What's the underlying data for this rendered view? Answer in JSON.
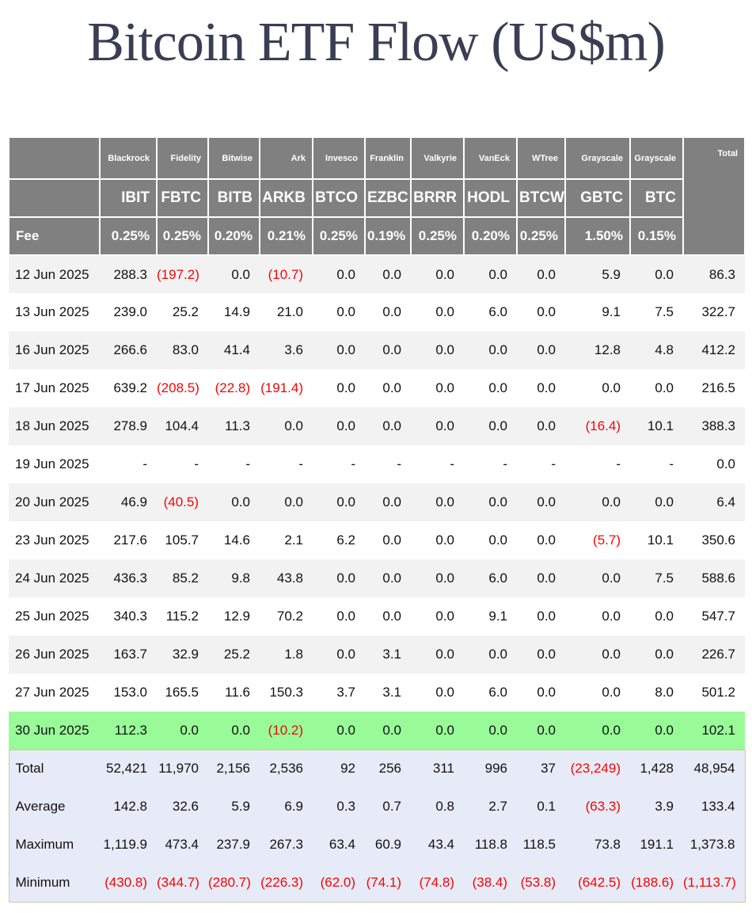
{
  "colors": {
    "title_navy": "#3a3e54",
    "header_gray": "#808080",
    "header_text": "#ffffff",
    "row_alt_gray": "#f2f2f3",
    "highlight_green": "#98fb98",
    "summary_lavender": "#e7ebf7",
    "negative_red": "#f40505"
  },
  "chart_data": {
    "type": "table",
    "title": "Bitcoin ETF Flow (US$m)",
    "fee_label": "Fee",
    "total_col_label": "Total",
    "providers": [
      "Blackrock",
      "Fidelity",
      "Bitwise",
      "Ark",
      "Invesco",
      "Franklin",
      "Valkyrie",
      "VanEck",
      "WTree",
      "Grayscale",
      "Grayscale"
    ],
    "tickers": [
      "IBIT",
      "FBTC",
      "BITB",
      "ARKB",
      "BTCO",
      "EZBC",
      "BRRR",
      "HODL",
      "BTCW",
      "GBTC",
      "BTC"
    ],
    "fees": [
      "0.25%",
      "0.25%",
      "0.20%",
      "0.21%",
      "0.25%",
      "0.19%",
      "0.25%",
      "0.20%",
      "0.25%",
      "1.50%",
      "0.15%"
    ],
    "rows": [
      {
        "date": "12 Jun 2025",
        "values": [
          "288.3",
          "(197.2)",
          "0.0",
          "(10.7)",
          "0.0",
          "0.0",
          "0.0",
          "0.0",
          "0.0",
          "5.9",
          "0.0"
        ],
        "total": "86.3",
        "highlight": false
      },
      {
        "date": "13 Jun 2025",
        "values": [
          "239.0",
          "25.2",
          "14.9",
          "21.0",
          "0.0",
          "0.0",
          "0.0",
          "6.0",
          "0.0",
          "9.1",
          "7.5"
        ],
        "total": "322.7",
        "highlight": false
      },
      {
        "date": "16 Jun 2025",
        "values": [
          "266.6",
          "83.0",
          "41.4",
          "3.6",
          "0.0",
          "0.0",
          "0.0",
          "0.0",
          "0.0",
          "12.8",
          "4.8"
        ],
        "total": "412.2",
        "highlight": false
      },
      {
        "date": "17 Jun 2025",
        "values": [
          "639.2",
          "(208.5)",
          "(22.8)",
          "(191.4)",
          "0.0",
          "0.0",
          "0.0",
          "0.0",
          "0.0",
          "0.0",
          "0.0"
        ],
        "total": "216.5",
        "highlight": false
      },
      {
        "date": "18 Jun 2025",
        "values": [
          "278.9",
          "104.4",
          "11.3",
          "0.0",
          "0.0",
          "0.0",
          "0.0",
          "0.0",
          "0.0",
          "(16.4)",
          "10.1"
        ],
        "total": "388.3",
        "highlight": false
      },
      {
        "date": "19 Jun 2025",
        "values": [
          "-",
          "-",
          "-",
          "-",
          "-",
          "-",
          "-",
          "-",
          "-",
          "-",
          "-"
        ],
        "total": "0.0",
        "highlight": false
      },
      {
        "date": "20 Jun 2025",
        "values": [
          "46.9",
          "(40.5)",
          "0.0",
          "0.0",
          "0.0",
          "0.0",
          "0.0",
          "0.0",
          "0.0",
          "0.0",
          "0.0"
        ],
        "total": "6.4",
        "highlight": false
      },
      {
        "date": "23 Jun 2025",
        "values": [
          "217.6",
          "105.7",
          "14.6",
          "2.1",
          "6.2",
          "0.0",
          "0.0",
          "0.0",
          "0.0",
          "(5.7)",
          "10.1"
        ],
        "total": "350.6",
        "highlight": false
      },
      {
        "date": "24 Jun 2025",
        "values": [
          "436.3",
          "85.2",
          "9.8",
          "43.8",
          "0.0",
          "0.0",
          "0.0",
          "6.0",
          "0.0",
          "0.0",
          "7.5"
        ],
        "total": "588.6",
        "highlight": false
      },
      {
        "date": "25 Jun 2025",
        "values": [
          "340.3",
          "115.2",
          "12.9",
          "70.2",
          "0.0",
          "0.0",
          "0.0",
          "9.1",
          "0.0",
          "0.0",
          "0.0"
        ],
        "total": "547.7",
        "highlight": false
      },
      {
        "date": "26 Jun 2025",
        "values": [
          "163.7",
          "32.9",
          "25.2",
          "1.8",
          "0.0",
          "3.1",
          "0.0",
          "0.0",
          "0.0",
          "0.0",
          "0.0"
        ],
        "total": "226.7",
        "highlight": false
      },
      {
        "date": "27 Jun 2025",
        "values": [
          "153.0",
          "165.5",
          "11.6",
          "150.3",
          "3.7",
          "3.1",
          "0.0",
          "6.0",
          "0.0",
          "0.0",
          "8.0"
        ],
        "total": "501.2",
        "highlight": false
      },
      {
        "date": "30 Jun 2025",
        "values": [
          "112.3",
          "0.0",
          "0.0",
          "(10.2)",
          "0.0",
          "0.0",
          "0.0",
          "0.0",
          "0.0",
          "0.0",
          "0.0"
        ],
        "total": "102.1",
        "highlight": true
      }
    ],
    "summary_rows": [
      {
        "label": "Total",
        "values": [
          "52,421",
          "11,970",
          "2,156",
          "2,536",
          "92",
          "256",
          "311",
          "996",
          "37",
          "(23,249)",
          "1,428"
        ],
        "total": "48,954"
      },
      {
        "label": "Average",
        "values": [
          "142.8",
          "32.6",
          "5.9",
          "6.9",
          "0.3",
          "0.7",
          "0.8",
          "2.7",
          "0.1",
          "(63.3)",
          "3.9"
        ],
        "total": "133.4"
      },
      {
        "label": "Maximum",
        "values": [
          "1,119.9",
          "473.4",
          "237.9",
          "267.3",
          "63.4",
          "60.9",
          "43.4",
          "118.8",
          "118.5",
          "73.8",
          "191.1"
        ],
        "total": "1,373.8"
      },
      {
        "label": "Minimum",
        "values": [
          "(430.8)",
          "(344.7)",
          "(280.7)",
          "(226.3)",
          "(62.0)",
          "(74.1)",
          "(74.8)",
          "(38.4)",
          "(53.8)",
          "(642.5)",
          "(188.6)"
        ],
        "total": "(1,113.7)"
      }
    ]
  }
}
